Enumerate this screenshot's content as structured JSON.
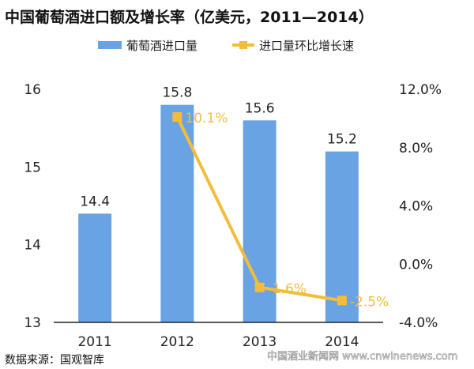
{
  "chart_data": {
    "type": "bar+line",
    "title": "中国葡萄酒进口额及增长率（亿美元，2011—2014）",
    "categories": [
      "2011",
      "2012",
      "2013",
      "2014"
    ],
    "series": [
      {
        "name": "葡萄酒进口量",
        "type": "bar",
        "axis": "left",
        "values": [
          14.4,
          15.8,
          15.6,
          15.2
        ],
        "labels": [
          "14.4",
          "15.8",
          "15.6",
          "15.2"
        ],
        "color": "#6aa3e3"
      },
      {
        "name": "进口量环比增长速",
        "type": "line",
        "axis": "right",
        "values": [
          null,
          10.1,
          -1.6,
          -2.5
        ],
        "labels": [
          "",
          "10.1%",
          "-1.6%",
          "-2.5%"
        ],
        "color": "#f2bd3a"
      }
    ],
    "y_left": {
      "range": [
        13,
        16
      ],
      "ticks": [
        "13",
        "14",
        "15",
        "16"
      ]
    },
    "y_right": {
      "range": [
        -4,
        12
      ],
      "ticks": [
        "-4.0%",
        "0.0%",
        "4.0%",
        "8.0%",
        "12.0%"
      ]
    },
    "grid": false,
    "legend": "top"
  },
  "footer": {
    "source": "数据来源：国观智库",
    "watermark": "中国酒业新闻网 www.cnwinenews.com"
  }
}
